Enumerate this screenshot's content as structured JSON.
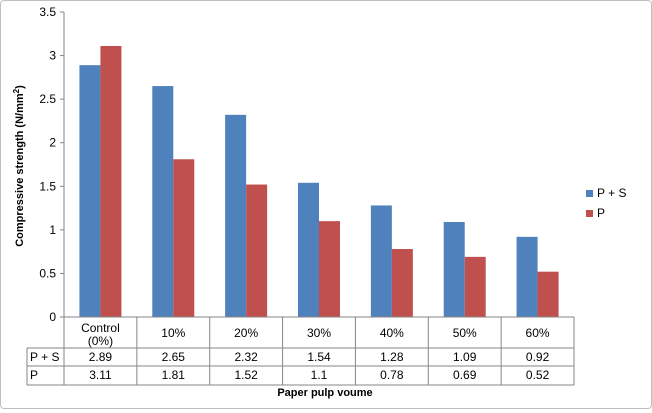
{
  "chart_data": {
    "type": "bar",
    "categories": [
      "Control (0%)",
      "10%",
      "20%",
      "30%",
      "40%",
      "50%",
      "60%"
    ],
    "category_lines": [
      [
        "Control",
        "(0%)"
      ],
      [
        "10%"
      ],
      [
        "20%"
      ],
      [
        "30%"
      ],
      [
        "40%"
      ],
      [
        "50%"
      ],
      [
        "60%"
      ]
    ],
    "series": [
      {
        "name": "P + S",
        "color": "#4f81bd",
        "values": [
          2.89,
          2.65,
          2.32,
          1.54,
          1.28,
          1.09,
          0.92
        ]
      },
      {
        "name": "P",
        "color": "#c0504d",
        "values": [
          3.11,
          1.81,
          1.52,
          1.1,
          0.78,
          0.69,
          0.52
        ]
      }
    ],
    "table_values": [
      [
        "2.89",
        "2.65",
        "2.32",
        "1.54",
        "1.28",
        "1.09",
        "0.92"
      ],
      [
        "3.11",
        "1.81",
        "1.52",
        "1.1",
        "0.78",
        "0.69",
        "0.52"
      ]
    ],
    "ylim": [
      0,
      3.5
    ],
    "yticks": [
      "0",
      "0.5",
      "1",
      "1.5",
      "2",
      "2.5",
      "3",
      "3.5"
    ],
    "ylabel": "Compressive strength (N/mm",
    "ylabel_superscript": "2",
    "ylabel_close": ")",
    "xlabel": "Paper pulp voume",
    "legend_position": "right",
    "grid": false,
    "data_table": true
  }
}
